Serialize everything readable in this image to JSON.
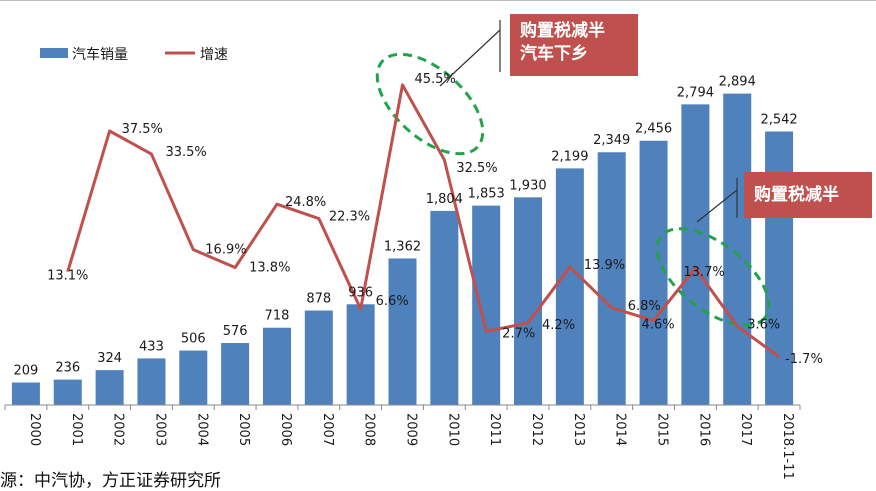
{
  "chart_data": {
    "type": "bar",
    "categories": [
      "2000",
      "2001",
      "2002",
      "2003",
      "2004",
      "2005",
      "2006",
      "2007",
      "2008",
      "2009",
      "2010",
      "2011",
      "2012",
      "2013",
      "2014",
      "2015",
      "2016",
      "2017",
      "2018.1-11"
    ],
    "series": [
      {
        "name": "汽车销量",
        "kind": "bar",
        "color": "#4f81bd",
        "values": [
          209,
          236,
          324,
          433,
          506,
          576,
          718,
          878,
          936,
          1362,
          1804,
          1853,
          1930,
          2199,
          2349,
          2456,
          2794,
          2894,
          2542
        ],
        "labels": [
          "209",
          "236",
          "324",
          "433",
          "506",
          "576",
          "718",
          "878",
          "936",
          "1,362",
          "1,804",
          "1,853",
          "1,930",
          "2,199",
          "2,349",
          "2,456",
          "2,794",
          "2,894",
          "2,542"
        ]
      },
      {
        "name": "增速",
        "kind": "line",
        "color": "#c0504d",
        "values": [
          null,
          13.1,
          37.5,
          33.5,
          16.9,
          13.8,
          24.8,
          22.3,
          6.6,
          45.5,
          32.5,
          2.7,
          4.2,
          13.9,
          6.8,
          4.6,
          13.7,
          3.6,
          -1.7
        ],
        "labels": [
          null,
          "13.1%",
          "37.5%",
          "33.5%",
          "16.9%",
          "13.8%",
          "24.8%",
          "22.3%",
          "6.6%",
          "45.5%",
          "32.5%",
          "2.7%",
          "4.2%",
          "13.9%",
          "6.8%",
          "4.6%",
          "13.7%",
          "3.6%",
          "-1.7%"
        ]
      }
    ],
    "legend": "top-left",
    "grid": false
  },
  "annotations": {
    "callout_1": [
      "购置税减半",
      "汽车下乡"
    ],
    "callout_2": "购置税减半"
  },
  "source_text": "源：中汽协，方正证券研究所"
}
